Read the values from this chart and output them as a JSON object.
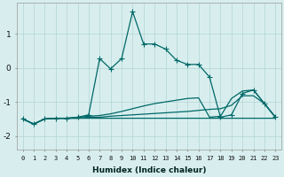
{
  "xlabel": "Humidex (Indice chaleur)",
  "bg_color": "#d8eeee",
  "grid_color": "#b8d8d8",
  "line_color": "#006868",
  "xlim": [
    -0.5,
    23.5
  ],
  "ylim": [
    -2.4,
    1.9
  ],
  "yticks": [
    -2,
    -1,
    0,
    1
  ],
  "xticks": [
    0,
    1,
    2,
    3,
    4,
    5,
    6,
    7,
    8,
    9,
    10,
    11,
    12,
    13,
    14,
    15,
    16,
    17,
    18,
    19,
    20,
    21,
    22,
    23
  ],
  "series": [
    {
      "x": [
        0,
        1,
        2,
        3,
        4,
        5,
        6,
        7,
        8,
        9,
        10,
        11,
        12,
        13,
        14,
        15,
        16,
        17,
        18,
        19,
        20,
        21,
        22,
        23
      ],
      "y": [
        -1.5,
        -1.65,
        -1.5,
        -1.48,
        -1.48,
        -1.48,
        -1.48,
        -1.48,
        -1.48,
        -1.48,
        -1.48,
        -1.48,
        -1.48,
        -1.48,
        -1.48,
        -1.48,
        -1.48,
        -1.48,
        -1.48,
        -1.48,
        -1.48,
        -1.48,
        -1.48,
        -1.48
      ],
      "marker": null,
      "linestyle": "-",
      "linewidth": 0.9
    },
    {
      "x": [
        0,
        1,
        2,
        3,
        4,
        5,
        6,
        7,
        8,
        9,
        10,
        11,
        12,
        13,
        14,
        15,
        16,
        17,
        18,
        19,
        20,
        21,
        22,
        23
      ],
      "y": [
        -1.5,
        -1.65,
        -1.5,
        -1.48,
        -1.48,
        -1.48,
        -1.45,
        -1.45,
        -1.42,
        -1.4,
        -1.38,
        -1.36,
        -1.34,
        -1.32,
        -1.3,
        -1.28,
        -1.25,
        -1.22,
        -1.2,
        -1.1,
        -0.82,
        -0.82,
        -1.05,
        -1.45
      ],
      "marker": null,
      "linestyle": "-",
      "linewidth": 0.9
    },
    {
      "x": [
        0,
        1,
        2,
        3,
        4,
        5,
        6,
        7,
        8,
        9,
        10,
        11,
        12,
        13,
        14,
        15,
        16,
        17,
        18,
        19,
        20,
        21,
        22,
        23
      ],
      "y": [
        -1.5,
        -1.65,
        -1.5,
        -1.48,
        -1.48,
        -1.45,
        -1.42,
        -1.4,
        -1.35,
        -1.28,
        -1.2,
        -1.12,
        -1.05,
        -1.0,
        -0.95,
        -0.9,
        -0.88,
        -1.45,
        -1.42,
        -0.9,
        -0.68,
        -0.65,
        -1.05,
        -1.45
      ],
      "marker": null,
      "linestyle": "-",
      "linewidth": 0.9
    },
    {
      "x": [
        0,
        1,
        2,
        3,
        4,
        5,
        6,
        7,
        8,
        9,
        10,
        11,
        12,
        13,
        14,
        15,
        16,
        17,
        18,
        19,
        20,
        21,
        22,
        23
      ],
      "y": [
        -1.5,
        -1.65,
        -1.5,
        -1.48,
        -1.48,
        -1.45,
        -1.38,
        0.27,
        -0.03,
        0.27,
        1.65,
        0.7,
        0.7,
        0.55,
        0.22,
        0.1,
        0.1,
        -0.27,
        -1.45,
        -1.38,
        -0.75,
        -0.65,
        -1.05,
        -1.45
      ],
      "marker": "+",
      "markersize": 4,
      "linestyle": "-",
      "linewidth": 0.9
    }
  ]
}
